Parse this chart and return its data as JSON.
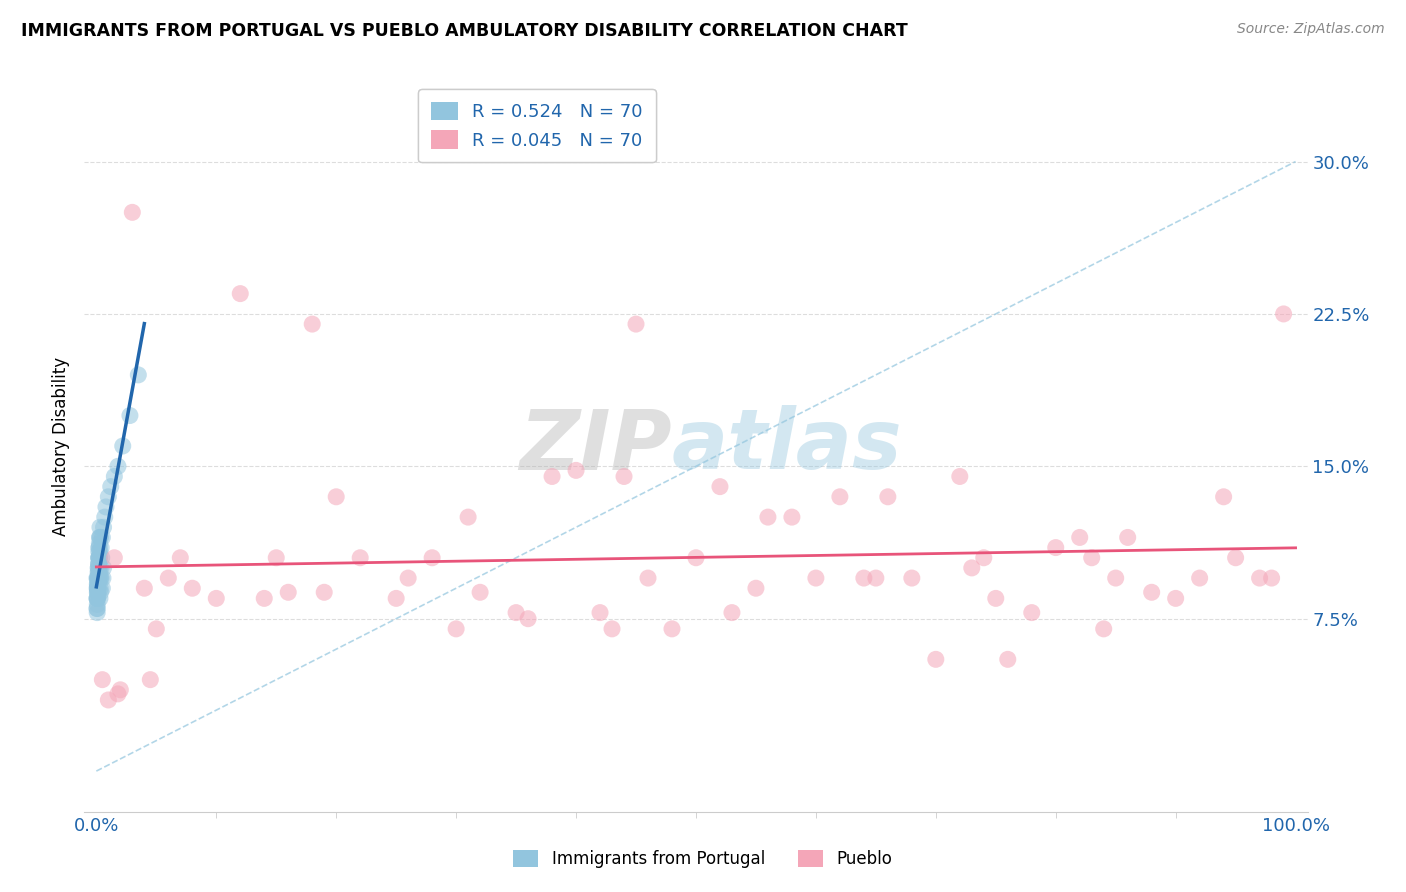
{
  "title": "IMMIGRANTS FROM PORTUGAL VS PUEBLO AMBULATORY DISABILITY CORRELATION CHART",
  "source": "Source: ZipAtlas.com",
  "ylabel": "Ambulatory Disability",
  "legend_blue_r": "R = 0.524",
  "legend_blue_n": "N = 70",
  "legend_pink_r": "R = 0.045",
  "legend_pink_n": "N = 70",
  "legend_label_blue": "Immigrants from Portugal",
  "legend_label_pink": "Pueblo",
  "blue_color": "#92c5de",
  "pink_color": "#f4a6b8",
  "blue_line_color": "#2166ac",
  "pink_line_color": "#e8547a",
  "diagonal_color": "#92c5de",
  "watermark_zip": "ZIP",
  "watermark_atlas": "atlas",
  "blue_points_x": [
    0.05,
    0.05,
    0.06,
    0.07,
    0.08,
    0.08,
    0.09,
    0.1,
    0.1,
    0.11,
    0.12,
    0.13,
    0.14,
    0.15,
    0.16,
    0.17,
    0.18,
    0.2,
    0.22,
    0.25,
    0.28,
    0.3,
    0.35,
    0.4,
    0.5,
    0.6,
    0.7,
    0.8,
    1.0,
    1.2,
    1.5,
    1.8,
    2.2,
    2.8,
    3.5,
    0.05,
    0.06,
    0.07,
    0.08,
    0.09,
    0.1,
    0.11,
    0.12,
    0.13,
    0.14,
    0.15,
    0.16,
    0.17,
    0.18,
    0.19,
    0.2,
    0.21,
    0.22,
    0.23,
    0.24,
    0.25,
    0.26,
    0.27,
    0.28,
    0.29,
    0.3,
    0.32,
    0.34,
    0.36,
    0.38,
    0.4,
    0.45,
    0.5,
    0.55,
    0.6
  ],
  "blue_points_y": [
    9.5,
    8.5,
    9.0,
    8.0,
    9.2,
    8.8,
    9.5,
    9.0,
    8.5,
    9.2,
    9.5,
    8.8,
    9.0,
    9.5,
    10.0,
    9.8,
    10.2,
    10.5,
    11.0,
    10.5,
    11.5,
    12.0,
    11.5,
    11.0,
    11.5,
    12.0,
    12.5,
    13.0,
    13.5,
    14.0,
    14.5,
    15.0,
    16.0,
    17.5,
    19.5,
    8.0,
    8.5,
    7.8,
    8.2,
    8.5,
    8.8,
    9.0,
    9.2,
    9.4,
    9.0,
    9.8,
    10.0,
    9.5,
    10.2,
    10.5,
    10.8,
    9.5,
    11.0,
    10.5,
    9.8,
    11.2,
    10.0,
    11.5,
    9.5,
    10.8,
    8.5,
    9.0,
    9.5,
    8.8,
    10.0,
    9.5,
    10.5,
    9.0,
    9.5,
    10.0
  ],
  "pink_points_x": [
    0.5,
    1.0,
    1.5,
    1.8,
    2.0,
    3.0,
    4.5,
    6.0,
    8.0,
    10.0,
    12.0,
    15.0,
    18.0,
    20.0,
    22.0,
    25.0,
    28.0,
    30.0,
    32.0,
    35.0,
    38.0,
    40.0,
    42.0,
    45.0,
    48.0,
    50.0,
    52.0,
    55.0,
    58.0,
    60.0,
    62.0,
    65.0,
    68.0,
    70.0,
    72.0,
    75.0,
    78.0,
    80.0,
    82.0,
    85.0,
    88.0,
    90.0,
    92.0,
    95.0,
    97.0,
    98.0,
    99.0,
    5.0,
    14.0,
    26.0,
    44.0,
    56.0,
    66.0,
    76.0,
    86.0,
    4.0,
    16.0,
    36.0,
    46.0,
    64.0,
    74.0,
    84.0,
    94.0,
    7.0,
    19.0,
    31.0,
    43.0,
    53.0,
    73.0,
    83.0
  ],
  "pink_points_y": [
    4.5,
    3.5,
    10.5,
    3.8,
    4.0,
    27.5,
    4.5,
    9.5,
    9.0,
    8.5,
    23.5,
    10.5,
    22.0,
    13.5,
    10.5,
    8.5,
    10.5,
    7.0,
    8.8,
    7.8,
    14.5,
    14.8,
    7.8,
    22.0,
    7.0,
    10.5,
    14.0,
    9.0,
    12.5,
    9.5,
    13.5,
    9.5,
    9.5,
    5.5,
    14.5,
    8.5,
    7.8,
    11.0,
    11.5,
    9.5,
    8.8,
    8.5,
    9.5,
    10.5,
    9.5,
    9.5,
    22.5,
    7.0,
    8.5,
    9.5,
    14.5,
    12.5,
    13.5,
    5.5,
    11.5,
    9.0,
    8.8,
    7.5,
    9.5,
    9.5,
    10.5,
    7.0,
    13.5,
    10.5,
    8.8,
    12.5,
    7.0,
    7.8,
    10.0,
    10.5
  ]
}
